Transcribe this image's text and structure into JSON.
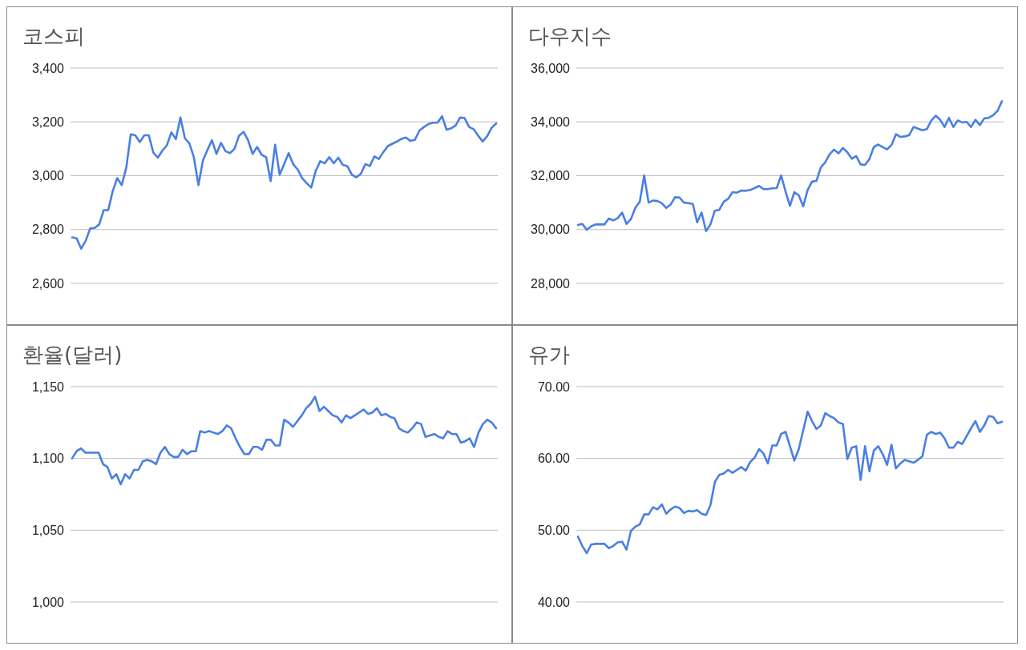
{
  "chart_data": [
    {
      "type": "line",
      "title": "코스피",
      "color": "#4a7fe3",
      "grid": "y",
      "ylim": [
        2600,
        3400
      ],
      "yticks": [
        {
          "value": 2600,
          "label": "2,600"
        },
        {
          "value": 2800,
          "label": "2,800"
        },
        {
          "value": 3000,
          "label": "3,000"
        },
        {
          "value": 3200,
          "label": "3,200"
        },
        {
          "value": 3400,
          "label": "3,400"
        }
      ],
      "categories": [
        null,
        null,
        null,
        null,
        null,
        null,
        null,
        null,
        null,
        null,
        null,
        null,
        null,
        null,
        null,
        null,
        null,
        null,
        null,
        null,
        null,
        null,
        null,
        null,
        null,
        null,
        null,
        null,
        null,
        null,
        null,
        null,
        null,
        null,
        null,
        null,
        null,
        null,
        null,
        null,
        null,
        null,
        null,
        null,
        null,
        null,
        null,
        null,
        null,
        null,
        null,
        null,
        null,
        null,
        null,
        null,
        null,
        null,
        null,
        null,
        null,
        null,
        null,
        null,
        null,
        null,
        null,
        null,
        null,
        null,
        null,
        null,
        null,
        null,
        null,
        null,
        null,
        null,
        null,
        null,
        null,
        null,
        null,
        null,
        null,
        null,
        null,
        null,
        null,
        null,
        null,
        null,
        null,
        null,
        null
      ],
      "values": [
        2771,
        2767,
        2729,
        2758,
        2804,
        2806,
        2819,
        2872,
        2872,
        2943,
        2991,
        2965,
        3030,
        3154,
        3150,
        3125,
        3150,
        3150,
        3086,
        3067,
        3093,
        3113,
        3161,
        3136,
        3216,
        3139,
        3120,
        3067,
        2965,
        3057,
        3096,
        3132,
        3081,
        3122,
        3091,
        3084,
        3100,
        3149,
        3163,
        3132,
        3081,
        3107,
        3078,
        3069,
        2980,
        3115,
        3004,
        3043,
        3084,
        3043,
        3023,
        2991,
        2972,
        2956,
        3018,
        3054,
        3046,
        3069,
        3046,
        3067,
        3040,
        3036,
        3004,
        2994,
        3007,
        3043,
        3036,
        3072,
        3062,
        3088,
        3110,
        3119,
        3127,
        3137,
        3142,
        3129,
        3134,
        3168,
        3181,
        3192,
        3197,
        3197,
        3221,
        3171,
        3176,
        3186,
        3216,
        3214,
        3181,
        3173,
        3149,
        3127,
        3147,
        3178,
        3194
      ]
    },
    {
      "type": "line",
      "title": "다우지수",
      "color": "#4a7fe3",
      "grid": "y",
      "ylim": [
        28000,
        36000
      ],
      "yticks": [
        {
          "value": 28000,
          "label": "28,000"
        },
        {
          "value": 30000,
          "label": "30,000"
        },
        {
          "value": 32000,
          "label": "32,000"
        },
        {
          "value": 34000,
          "label": "34,000"
        },
        {
          "value": 36000,
          "label": "36,000"
        }
      ],
      "categories": [
        null,
        null,
        null,
        null,
        null,
        null,
        null,
        null,
        null,
        null,
        null,
        null,
        null,
        null,
        null,
        null,
        null,
        null,
        null,
        null,
        null,
        null,
        null,
        null,
        null,
        null,
        null,
        null,
        null,
        null,
        null,
        null,
        null,
        null,
        null,
        null,
        null,
        null,
        null,
        null,
        null,
        null,
        null,
        null,
        null,
        null,
        null,
        null,
        null,
        null,
        null,
        null,
        null,
        null,
        null,
        null,
        null,
        null,
        null,
        null,
        null,
        null,
        null,
        null,
        null,
        null,
        null,
        null,
        null,
        null,
        null,
        null,
        null,
        null,
        null,
        null,
        null,
        null,
        null,
        null,
        null,
        null,
        null,
        null,
        null,
        null,
        null,
        null,
        null,
        null,
        null,
        null,
        null,
        null,
        null,
        null,
        null
      ],
      "values": [
        30170,
        30210,
        29990,
        30120,
        30190,
        30190,
        30190,
        30410,
        30340,
        30420,
        30630,
        30210,
        30390,
        30810,
        31030,
        32010,
        31000,
        31080,
        31060,
        30980,
        30800,
        30930,
        31200,
        31190,
        31000,
        30980,
        30950,
        30270,
        30630,
        29940,
        30190,
        30700,
        30730,
        31030,
        31140,
        31390,
        31370,
        31450,
        31440,
        31470,
        31540,
        31620,
        31500,
        31500,
        31530,
        31540,
        32010,
        31420,
        30880,
        31390,
        31270,
        30860,
        31470,
        31780,
        31810,
        32310,
        32500,
        32800,
        32970,
        32830,
        33030,
        32870,
        32630,
        32730,
        32420,
        32400,
        32620,
        33070,
        33160,
        33060,
        32980,
        33140,
        33540,
        33440,
        33460,
        33510,
        33810,
        33750,
        33690,
        33730,
        34050,
        34230,
        34080,
        33810,
        34150,
        33810,
        34050,
        33980,
        34000,
        33810,
        34080,
        33880,
        34130,
        34150,
        34250,
        34410,
        34770
      ]
    },
    {
      "type": "line",
      "title": "환율(달러)",
      "color": "#4a7fe3",
      "grid": "y",
      "ylim": [
        1000,
        1150
      ],
      "yticks": [
        {
          "value": 1000,
          "label": "1,000"
        },
        {
          "value": 1050,
          "label": "1,050"
        },
        {
          "value": 1100,
          "label": "1,100"
        },
        {
          "value": 1150,
          "label": "1,150"
        }
      ],
      "categories": [
        null,
        null,
        null,
        null,
        null,
        null,
        null,
        null,
        null,
        null,
        null,
        null,
        null,
        null,
        null,
        null,
        null,
        null,
        null,
        null,
        null,
        null,
        null,
        null,
        null,
        null,
        null,
        null,
        null,
        null,
        null,
        null,
        null,
        null,
        null,
        null,
        null,
        null,
        null,
        null,
        null,
        null,
        null,
        null,
        null,
        null,
        null,
        null,
        null,
        null,
        null,
        null,
        null,
        null,
        null,
        null,
        null,
        null,
        null,
        null,
        null,
        null,
        null,
        null,
        null,
        null,
        null,
        null,
        null,
        null,
        null,
        null,
        null,
        null,
        null,
        null,
        null,
        null,
        null,
        null,
        null,
        null,
        null,
        null,
        null,
        null,
        null,
        null,
        null,
        null,
        null,
        null,
        null,
        null,
        null,
        null,
        null
      ],
      "values": [
        1100,
        1105,
        1107,
        1104,
        1104,
        1104,
        1104,
        1096,
        1094,
        1086,
        1089,
        1082,
        1089,
        1086,
        1092,
        1092,
        1098,
        1099,
        1098,
        1096,
        1104,
        1108,
        1103,
        1101,
        1101,
        1106,
        1103,
        1105,
        1105,
        1119,
        1118,
        1119,
        1118,
        1117,
        1119,
        1123,
        1121,
        1114,
        1108,
        1103,
        1103,
        1108,
        1108,
        1106,
        1113,
        1113,
        1109,
        1109,
        1127,
        1125,
        1122,
        1126,
        1130,
        1135,
        1138,
        1143,
        1133,
        1136,
        1133,
        1130,
        1129,
        1125,
        1130,
        1128,
        1130,
        1132,
        1134,
        1131,
        1132,
        1135,
        1130,
        1131,
        1129,
        1128,
        1121,
        1119,
        1118,
        1121,
        1125,
        1124,
        1115,
        1116,
        1117,
        1115,
        1114,
        1119,
        1117,
        1117,
        1111,
        1112,
        1114,
        1108,
        1118,
        1124,
        1127,
        1125,
        1121
      ]
    },
    {
      "type": "line",
      "title": "유가",
      "color": "#4a7fe3",
      "grid": "y",
      "ylim": [
        40,
        70
      ],
      "yticks": [
        {
          "value": 40,
          "label": "40.00"
        },
        {
          "value": 50,
          "label": "50.00"
        },
        {
          "value": 60,
          "label": "60.00"
        },
        {
          "value": 70,
          "label": "70.00"
        }
      ],
      "categories": [
        null,
        null,
        null,
        null,
        null,
        null,
        null,
        null,
        null,
        null,
        null,
        null,
        null,
        null,
        null,
        null,
        null,
        null,
        null,
        null,
        null,
        null,
        null,
        null,
        null,
        null,
        null,
        null,
        null,
        null,
        null,
        null,
        null,
        null,
        null,
        null,
        null,
        null,
        null,
        null,
        null,
        null,
        null,
        null,
        null,
        null,
        null,
        null,
        null,
        null,
        null,
        null,
        null,
        null,
        null,
        null,
        null,
        null,
        null,
        null,
        null,
        null,
        null,
        null,
        null,
        null,
        null,
        null,
        null,
        null,
        null,
        null,
        null,
        null,
        null,
        null,
        null,
        null,
        null,
        null,
        null,
        null,
        null,
        null,
        null,
        null,
        null,
        null,
        null,
        null,
        null,
        null,
        null,
        null,
        null,
        null,
        null
      ],
      "values": [
        49.1,
        47.8,
        46.8,
        48.0,
        48.1,
        48.1,
        48.1,
        47.5,
        47.8,
        48.3,
        48.4,
        47.3,
        49.9,
        50.5,
        50.8,
        52.2,
        52.2,
        53.2,
        52.9,
        53.6,
        52.3,
        52.9,
        53.3,
        53.1,
        52.4,
        52.7,
        52.6,
        52.8,
        52.3,
        52.1,
        53.5,
        56.7,
        57.7,
        57.9,
        58.4,
        58.0,
        58.4,
        58.8,
        58.3,
        59.5,
        60.1,
        61.3,
        60.7,
        59.3,
        61.8,
        61.8,
        63.4,
        63.7,
        61.7,
        59.7,
        61.3,
        63.9,
        66.5,
        65.2,
        64.1,
        64.6,
        66.3,
        65.9,
        65.6,
        65.0,
        64.8,
        59.9,
        61.5,
        61.7,
        57.0,
        61.7,
        58.2,
        61.1,
        61.7,
        60.6,
        59.1,
        61.9,
        58.6,
        59.3,
        59.8,
        59.6,
        59.4,
        59.8,
        60.3,
        63.3,
        63.7,
        63.4,
        63.6,
        62.8,
        61.5,
        61.5,
        62.3,
        62.0,
        63.1,
        64.2,
        65.2,
        63.7,
        64.6,
        65.9,
        65.8,
        64.9,
        65.1
      ]
    }
  ]
}
